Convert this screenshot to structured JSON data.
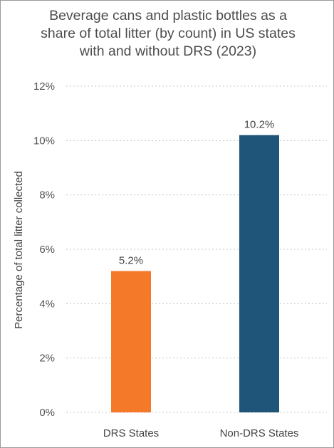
{
  "chart_data": {
    "type": "bar",
    "title_lines": [
      "Beverage cans and plastic bottles as a",
      "share of total litter (by count) in US states",
      "with and without DRS (2023)"
    ],
    "categories": [
      "DRS States",
      "Non-DRS States"
    ],
    "values": [
      5.2,
      10.2
    ],
    "value_labels": [
      "5.2%",
      "10.2%"
    ],
    "bar_colors": [
      "#f47a2a",
      "#1f5578"
    ],
    "xlabel": "",
    "ylabel": "Percentage of total litter collected",
    "ylim": [
      0,
      12
    ],
    "yticks": [
      0,
      2,
      4,
      6,
      8,
      10,
      12
    ],
    "ytick_labels": [
      "0%",
      "2%",
      "4%",
      "6%",
      "8%",
      "10%",
      "12%"
    ],
    "grid": true,
    "legend": "none"
  }
}
